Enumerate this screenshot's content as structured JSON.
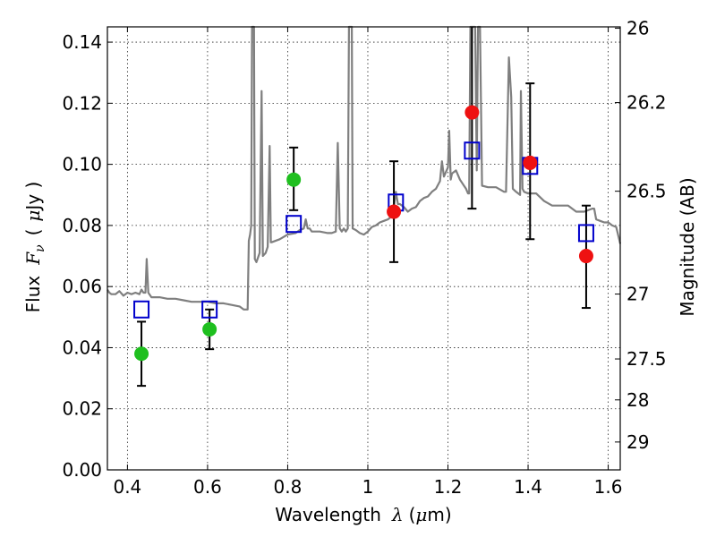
{
  "chart_data": {
    "type": "scatter",
    "xlabel_text": "Wavelength",
    "xlabel_math": "λ",
    "xlabel_unit_open": "(",
    "xlabel_unit_mu": "μ",
    "xlabel_unit_rest": "m)",
    "ylabel_text": "Flux",
    "ylabel_math_F": "F",
    "ylabel_math_nu": "ν",
    "ylabel_unit_open": "(",
    "ylabel_unit_mu": "μ",
    "ylabel_unit_rest": "Jy )",
    "y2label": "Magnitude (AB)",
    "xlim": [
      0.35,
      1.63
    ],
    "ylim": [
      0,
      0.145
    ],
    "x_ticks": [
      {
        "value": 0.4,
        "label": "0.4"
      },
      {
        "value": 0.6,
        "label": "0.6"
      },
      {
        "value": 0.8,
        "label": "0.8"
      },
      {
        "value": 1.0,
        "label": "1"
      },
      {
        "value": 1.2,
        "label": "1.2"
      },
      {
        "value": 1.4,
        "label": "1.4"
      },
      {
        "value": 1.6,
        "label": "1.6"
      }
    ],
    "y_ticks": [
      {
        "value": 0.0,
        "label": "0.00"
      },
      {
        "value": 0.02,
        "label": "0.02"
      },
      {
        "value": 0.04,
        "label": "0.04"
      },
      {
        "value": 0.06,
        "label": "0.06"
      },
      {
        "value": 0.08,
        "label": "0.08"
      },
      {
        "value": 0.1,
        "label": "0.10"
      },
      {
        "value": 0.12,
        "label": "0.12"
      },
      {
        "value": 0.14,
        "label": "0.14"
      }
    ],
    "y2_ticks": [
      {
        "mag": 26,
        "label": "26"
      },
      {
        "mag": 26.2,
        "label": "26.2"
      },
      {
        "mag": 26.5,
        "label": "26.5"
      },
      {
        "mag": 27,
        "label": "27"
      },
      {
        "mag": 27.5,
        "label": "27.5"
      },
      {
        "mag": 28,
        "label": "28"
      },
      {
        "mag": 29,
        "label": "29"
      }
    ],
    "grid": true,
    "colors": {
      "spectrum": "#7f7f7f",
      "model": "#0000cc",
      "optical": "#1fbf1f",
      "nir": "#ee1111",
      "errorbar": "#000000"
    },
    "spectrum": [
      [
        0.35,
        0.059
      ],
      [
        0.355,
        0.058
      ],
      [
        0.36,
        0.0575
      ],
      [
        0.37,
        0.0575
      ],
      [
        0.38,
        0.0585
      ],
      [
        0.39,
        0.057
      ],
      [
        0.4,
        0.058
      ],
      [
        0.41,
        0.0575
      ],
      [
        0.42,
        0.058
      ],
      [
        0.43,
        0.0575
      ],
      [
        0.435,
        0.059
      ],
      [
        0.44,
        0.058
      ],
      [
        0.445,
        0.058
      ],
      [
        0.448,
        0.069
      ],
      [
        0.452,
        0.058
      ],
      [
        0.46,
        0.0565
      ],
      [
        0.48,
        0.0565
      ],
      [
        0.5,
        0.056
      ],
      [
        0.52,
        0.056
      ],
      [
        0.54,
        0.0555
      ],
      [
        0.56,
        0.055
      ],
      [
        0.58,
        0.055
      ],
      [
        0.6,
        0.055
      ],
      [
        0.62,
        0.0545
      ],
      [
        0.64,
        0.0545
      ],
      [
        0.66,
        0.054
      ],
      [
        0.68,
        0.0535
      ],
      [
        0.69,
        0.0525
      ],
      [
        0.7,
        0.0525
      ],
      [
        0.703,
        0.075
      ],
      [
        0.706,
        0.077
      ],
      [
        0.709,
        0.08
      ],
      [
        0.711,
        0.145
      ],
      [
        0.716,
        0.145
      ],
      [
        0.718,
        0.069
      ],
      [
        0.722,
        0.068
      ],
      [
        0.73,
        0.071
      ],
      [
        0.735,
        0.124
      ],
      [
        0.738,
        0.07
      ],
      [
        0.745,
        0.071
      ],
      [
        0.75,
        0.073
      ],
      [
        0.755,
        0.106
      ],
      [
        0.758,
        0.0745
      ],
      [
        0.76,
        0.0745
      ],
      [
        0.78,
        0.0755
      ],
      [
        0.8,
        0.077
      ],
      [
        0.82,
        0.0775
      ],
      [
        0.83,
        0.0785
      ],
      [
        0.84,
        0.079
      ],
      [
        0.845,
        0.082
      ],
      [
        0.85,
        0.079
      ],
      [
        0.855,
        0.079
      ],
      [
        0.86,
        0.078
      ],
      [
        0.88,
        0.078
      ],
      [
        0.9,
        0.0775
      ],
      [
        0.91,
        0.0775
      ],
      [
        0.92,
        0.078
      ],
      [
        0.925,
        0.107
      ],
      [
        0.93,
        0.079
      ],
      [
        0.935,
        0.078
      ],
      [
        0.94,
        0.079
      ],
      [
        0.945,
        0.078
      ],
      [
        0.95,
        0.079
      ],
      [
        0.953,
        0.145
      ],
      [
        0.96,
        0.145
      ],
      [
        0.962,
        0.079
      ],
      [
        0.97,
        0.0785
      ],
      [
        0.98,
        0.0775
      ],
      [
        0.99,
        0.077
      ],
      [
        1.0,
        0.078
      ],
      [
        1.01,
        0.0795
      ],
      [
        1.02,
        0.08
      ],
      [
        1.03,
        0.081
      ],
      [
        1.04,
        0.0815
      ],
      [
        1.05,
        0.082
      ],
      [
        1.06,
        0.083
      ],
      [
        1.065,
        0.086
      ],
      [
        1.07,
        0.091
      ],
      [
        1.075,
        0.087
      ],
      [
        1.08,
        0.087
      ],
      [
        1.09,
        0.086
      ],
      [
        1.1,
        0.0845
      ],
      [
        1.11,
        0.0855
      ],
      [
        1.12,
        0.086
      ],
      [
        1.13,
        0.088
      ],
      [
        1.14,
        0.089
      ],
      [
        1.15,
        0.0895
      ],
      [
        1.16,
        0.091
      ],
      [
        1.17,
        0.092
      ],
      [
        1.18,
        0.0945
      ],
      [
        1.185,
        0.101
      ],
      [
        1.19,
        0.096
      ],
      [
        1.2,
        0.099
      ],
      [
        1.203,
        0.111
      ],
      [
        1.207,
        0.095
      ],
      [
        1.21,
        0.097
      ],
      [
        1.22,
        0.098
      ],
      [
        1.23,
        0.095
      ],
      [
        1.24,
        0.093
      ],
      [
        1.245,
        0.092
      ],
      [
        1.25,
        0.0905
      ],
      [
        1.253,
        0.0905
      ],
      [
        1.256,
        0.145
      ],
      [
        1.268,
        0.145
      ],
      [
        1.272,
        0.098
      ],
      [
        1.275,
        0.145
      ],
      [
        1.28,
        0.145
      ],
      [
        1.285,
        0.093
      ],
      [
        1.3,
        0.0925
      ],
      [
        1.32,
        0.0925
      ],
      [
        1.34,
        0.091
      ],
      [
        1.345,
        0.091
      ],
      [
        1.352,
        0.135
      ],
      [
        1.358,
        0.122
      ],
      [
        1.362,
        0.092
      ],
      [
        1.37,
        0.091
      ],
      [
        1.38,
        0.09
      ],
      [
        1.382,
        0.124
      ],
      [
        1.386,
        0.092
      ],
      [
        1.39,
        0.091
      ],
      [
        1.4,
        0.0905
      ],
      [
        1.42,
        0.0905
      ],
      [
        1.44,
        0.088
      ],
      [
        1.46,
        0.0865
      ],
      [
        1.48,
        0.0865
      ],
      [
        1.5,
        0.0865
      ],
      [
        1.52,
        0.0845
      ],
      [
        1.54,
        0.0845
      ],
      [
        1.56,
        0.0855
      ],
      [
        1.565,
        0.0855
      ],
      [
        1.57,
        0.082
      ],
      [
        1.58,
        0.0815
      ],
      [
        1.59,
        0.081
      ],
      [
        1.6,
        0.081
      ],
      [
        1.61,
        0.08
      ],
      [
        1.62,
        0.0795
      ],
      [
        1.63,
        0.074
      ]
    ],
    "model_points": [
      {
        "x": 0.435,
        "y": 0.0525
      },
      {
        "x": 0.605,
        "y": 0.0525
      },
      {
        "x": 0.815,
        "y": 0.0805
      },
      {
        "x": 1.07,
        "y": 0.0875
      },
      {
        "x": 1.26,
        "y": 0.1045
      },
      {
        "x": 1.405,
        "y": 0.0995
      },
      {
        "x": 1.545,
        "y": 0.0775
      }
    ],
    "observed_optical": [
      {
        "x": 0.435,
        "y": 0.038,
        "err_low": 0.0275,
        "err_high": 0.0485
      },
      {
        "x": 0.605,
        "y": 0.046,
        "err_low": 0.0395,
        "err_high": 0.0525
      },
      {
        "x": 0.815,
        "y": 0.095,
        "err_low": 0.085,
        "err_high": 0.1055
      }
    ],
    "observed_nir": [
      {
        "x": 1.065,
        "y": 0.0845,
        "err_low": 0.068,
        "err_high": 0.101
      },
      {
        "x": 1.26,
        "y": 0.117,
        "err_low": 0.0855,
        "err_high": 0.145
      },
      {
        "x": 1.405,
        "y": 0.1005,
        "err_low": 0.0755,
        "err_high": 0.1265
      },
      {
        "x": 1.545,
        "y": 0.07,
        "err_low": 0.053,
        "err_high": 0.0865
      }
    ]
  }
}
